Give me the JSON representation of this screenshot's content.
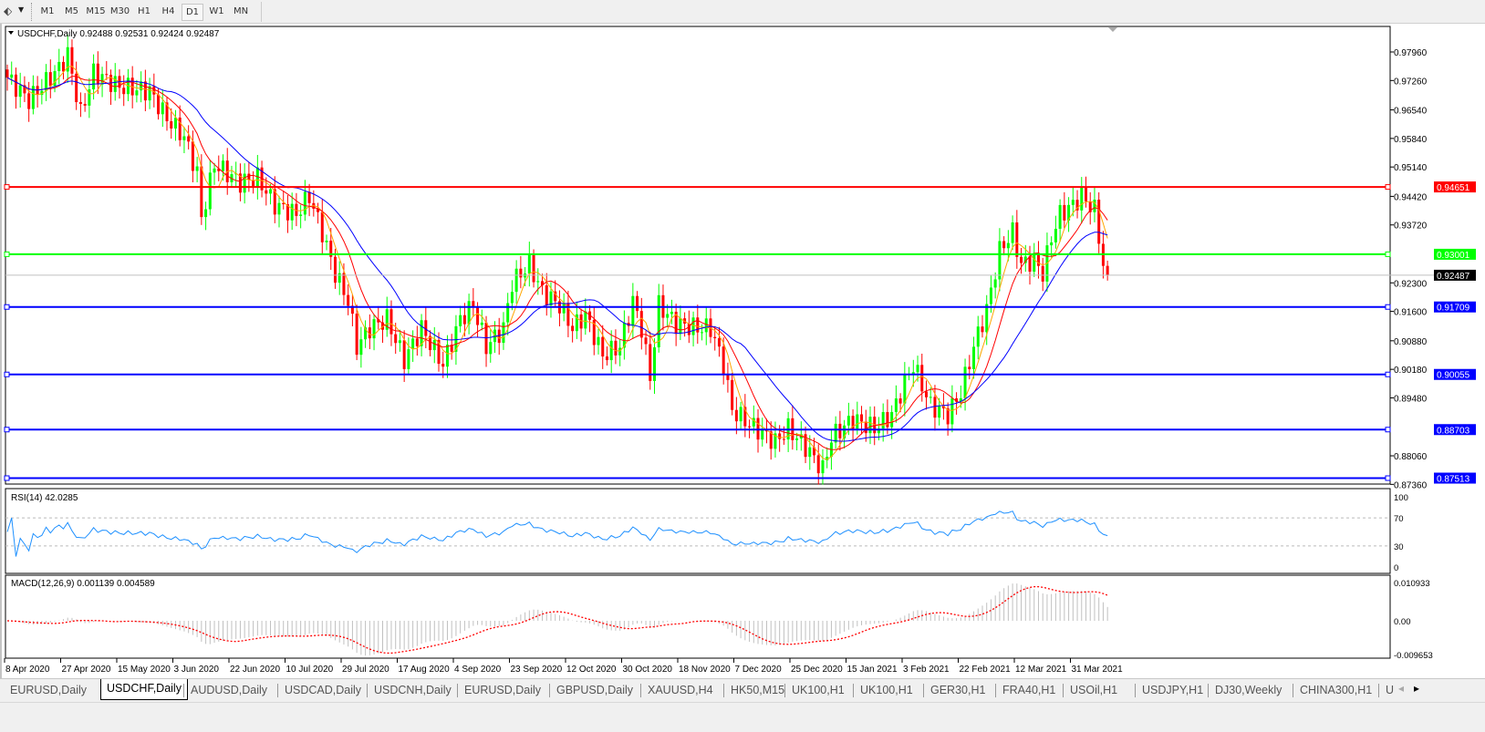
{
  "toolbar": {
    "timeframes": [
      "M1",
      "M5",
      "M15",
      "M30",
      "H1",
      "H4",
      "D1",
      "W1",
      "MN"
    ],
    "active": "D1"
  },
  "chart": {
    "header": "USDCHF,Daily  0.92488 0.92531 0.92424 0.92487",
    "symbol": "USDCHF",
    "period": "Daily",
    "ohlc": {
      "open": 0.92488,
      "high": 0.92531,
      "low": 0.92424,
      "close": 0.92487
    },
    "price_axis_ticks": [
      "0.97960",
      "0.97260",
      "0.96540",
      "0.95840",
      "0.95140",
      "0.94420",
      "0.93720",
      "0.92300",
      "0.91600",
      "0.90880",
      "0.90180",
      "0.89480",
      "0.88060",
      "0.87360"
    ],
    "current_price": "0.92487",
    "levels": [
      {
        "price": "0.94651",
        "color": "#ff0000"
      },
      {
        "price": "0.93001",
        "color": "#00ff00"
      },
      {
        "price": "0.91709",
        "color": "#0000ff"
      },
      {
        "price": "0.90055",
        "color": "#0000ff"
      },
      {
        "price": "0.88703",
        "color": "#0000ff"
      },
      {
        "price": "0.87513",
        "color": "#0000ff"
      }
    ],
    "colors": {
      "bull": "#00ff00",
      "bear": "#ff0000",
      "ma_fast": "#ffa500",
      "ma_mid": "#ff0000",
      "ma_slow": "#0000ff",
      "rsi": "#1e90ff",
      "macd_signal": "#ff0000",
      "macd_hist": "#c0c0c0"
    },
    "date_labels": [
      "8 Apr 2020",
      "27 Apr 2020",
      "15 May 2020",
      "3 Jun 2020",
      "22 Jun 2020",
      "10 Jul 2020",
      "29 Jul 2020",
      "17 Aug 2020",
      "4 Sep 2020",
      "23 Sep 2020",
      "12 Oct 2020",
      "30 Oct 2020",
      "18 Nov 2020",
      "7 Dec 2020",
      "25 Dec 2020",
      "15 Jan 2021",
      "3 Feb 2021",
      "22 Feb 2021",
      "12 Mar 2021",
      "31 Mar 2021"
    ]
  },
  "chart_data": {
    "type": "candlestick",
    "close_path": [
      [
        0,
        0.9733
      ],
      [
        5,
        0.9678
      ],
      [
        12,
        0.9756
      ],
      [
        14,
        0.979
      ],
      [
        17,
        0.9644
      ],
      [
        20,
        0.9745
      ],
      [
        26,
        0.9711
      ],
      [
        33,
        0.97
      ],
      [
        37,
        0.9633
      ],
      [
        41,
        0.9588
      ],
      [
        44,
        0.95
      ],
      [
        45,
        0.9387
      ],
      [
        48,
        0.9521
      ],
      [
        54,
        0.9476
      ],
      [
        58,
        0.9488
      ],
      [
        62,
        0.9421
      ],
      [
        67,
        0.9398
      ],
      [
        70,
        0.9443
      ],
      [
        73,
        0.9354
      ],
      [
        76,
        0.9253
      ],
      [
        79,
        0.9186
      ],
      [
        81,
        0.9074
      ],
      [
        84,
        0.9119
      ],
      [
        88,
        0.9141
      ],
      [
        92,
        0.9041
      ],
      [
        96,
        0.9119
      ],
      [
        101,
        0.9029
      ],
      [
        105,
        0.9141
      ],
      [
        108,
        0.9175
      ],
      [
        111,
        0.9074
      ],
      [
        115,
        0.9119
      ],
      [
        117,
        0.923
      ],
      [
        121,
        0.9275
      ],
      [
        124,
        0.9208
      ],
      [
        128,
        0.9175
      ],
      [
        131,
        0.9119
      ],
      [
        134,
        0.9152
      ],
      [
        138,
        0.9052
      ],
      [
        142,
        0.9074
      ],
      [
        145,
        0.9186
      ],
      [
        147,
        0.9119
      ],
      [
        149,
        0.8996
      ],
      [
        151,
        0.9175
      ],
      [
        155,
        0.913
      ],
      [
        160,
        0.9119
      ],
      [
        163,
        0.9119
      ],
      [
        166,
        0.9029
      ],
      [
        168,
        0.8918
      ],
      [
        172,
        0.8884
      ],
      [
        178,
        0.884
      ],
      [
        181,
        0.8873
      ],
      [
        185,
        0.8828
      ],
      [
        189,
        0.8772
      ],
      [
        191,
        0.8851
      ],
      [
        196,
        0.8896
      ],
      [
        201,
        0.8873
      ],
      [
        205,
        0.8907
      ],
      [
        208,
        0.8985
      ],
      [
        210,
        0.9029
      ],
      [
        214,
        0.8929
      ],
      [
        218,
        0.8907
      ],
      [
        221,
        0.8962
      ],
      [
        224,
        0.9074
      ],
      [
        227,
        0.9164
      ],
      [
        230,
        0.9309
      ],
      [
        233,
        0.9354
      ],
      [
        235,
        0.9275
      ],
      [
        238,
        0.9286
      ],
      [
        240,
        0.9253
      ],
      [
        242,
        0.9342
      ],
      [
        244,
        0.9398
      ],
      [
        247,
        0.9421
      ],
      [
        249,
        0.9443
      ],
      [
        252,
        0.9409
      ],
      [
        254,
        0.9275
      ],
      [
        255,
        0.92487
      ]
    ],
    "ylim": [
      0.8736,
      0.9845
    ]
  },
  "rsi": {
    "label": "RSI(14) 42.0285",
    "ticks": [
      "100",
      "70",
      "30",
      "0"
    ]
  },
  "macd": {
    "label": "MACD(12,26,9) 0.001139 0.004589",
    "ticks": [
      "0.010933",
      "0.00",
      "-0.009653"
    ]
  },
  "tabs": [
    "EURUSD,Daily",
    "USDCHF,Daily",
    "AUDUSD,Daily",
    "USDCAD,Daily",
    "USDCNH,Daily",
    "EURUSD,Daily",
    "GBPUSD,Daily",
    "XAUUSD,H4",
    "HK50,M15",
    "UK100,H1",
    "UK100,H1",
    "GER30,H1",
    "FRA40,H1",
    "USOil,H1",
    "USDJPY,H1",
    "DJ30,Weekly",
    "CHINA300,H1",
    "U"
  ],
  "active_tab": "USDCHF,Daily"
}
